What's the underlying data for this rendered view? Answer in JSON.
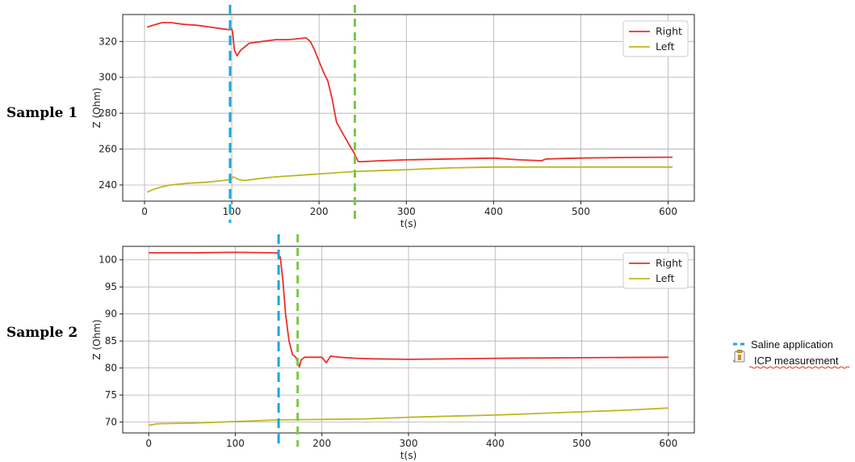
{
  "figure_legend": {
    "items": [
      {
        "label": "Saline application",
        "color": "#1aa7dc",
        "style": "dashed"
      },
      {
        "label": "ICP measurement",
        "color": "#7ac943",
        "style": "dashed"
      }
    ],
    "icon": "clipboard-icon"
  },
  "chart_data": [
    {
      "type": "line",
      "sample_label": "Sample 1",
      "xlabel": "t(s)",
      "ylabel": "Z (Ohm)",
      "xlim": [
        -25,
        630
      ],
      "ylim": [
        231,
        335
      ],
      "x_ticks": [
        0,
        100,
        200,
        300,
        400,
        500,
        600
      ],
      "y_ticks": [
        240,
        260,
        280,
        300,
        320
      ],
      "grid": true,
      "legend": "top-right",
      "vlines": [
        {
          "name": "Saline application",
          "x": 98,
          "color": "#1aa7dc"
        },
        {
          "name": "ICP measurement",
          "x": 241,
          "color": "#7ac943"
        }
      ],
      "series": [
        {
          "name": "Right",
          "color": "#e8312f",
          "x": [
            3,
            10,
            20,
            30,
            45,
            60,
            75,
            90,
            98,
            100,
            101,
            103,
            106,
            110,
            120,
            135,
            150,
            165,
            175,
            185,
            190,
            195,
            200,
            205,
            210,
            215,
            220,
            228,
            235,
            240,
            245,
            250,
            270,
            300,
            350,
            400,
            430,
            455,
            460,
            500,
            550,
            605
          ],
          "y": [
            328,
            329,
            330.5,
            330.5,
            329.5,
            329,
            328,
            327,
            326.5,
            327,
            325,
            315,
            312,
            315,
            319,
            320,
            321,
            321,
            321.5,
            322,
            320,
            315,
            309,
            303,
            298,
            288,
            275,
            268,
            262,
            258,
            253,
            253,
            253.5,
            254,
            254.5,
            255,
            254,
            253.5,
            254.5,
            255,
            255.3,
            255.5
          ]
        },
        {
          "name": "Left",
          "color": "#bcb822",
          "x": [
            3,
            10,
            20,
            30,
            50,
            70,
            90,
            98,
            102,
            108,
            115,
            130,
            150,
            180,
            210,
            240,
            270,
            300,
            350,
            400,
            450,
            500,
            550,
            605
          ],
          "y": [
            236,
            237.5,
            239,
            240,
            241,
            241.5,
            242.5,
            243,
            244.5,
            243,
            242.5,
            243.5,
            244.5,
            245.5,
            246.5,
            247.5,
            248,
            248.5,
            249.5,
            250,
            250,
            250,
            250,
            250
          ]
        }
      ]
    },
    {
      "type": "line",
      "sample_label": "Sample 2",
      "xlabel": "t(s)",
      "ylabel": "Z (Ohm)",
      "xlim": [
        -30,
        630
      ],
      "ylim": [
        68,
        102.5
      ],
      "x_ticks": [
        0,
        100,
        200,
        300,
        400,
        500,
        600
      ],
      "y_ticks": [
        70,
        75,
        80,
        85,
        90,
        95,
        100
      ],
      "grid": true,
      "legend": "top-right",
      "vlines": [
        {
          "name": "Saline application",
          "x": 150,
          "color": "#1aa7dc"
        },
        {
          "name": "ICP measurement",
          "x": 172,
          "color": "#7ac943"
        }
      ],
      "series": [
        {
          "name": "Right",
          "color": "#e8312f",
          "x": [
            0,
            50,
            100,
            148,
            152,
            155,
            158,
            162,
            166,
            170,
            174,
            176,
            180,
            190,
            200,
            205,
            210,
            220,
            240,
            260,
            300,
            400,
            500,
            600
          ],
          "y": [
            101.3,
            101.3,
            101.4,
            101.3,
            100.5,
            96,
            90,
            85,
            82.5,
            82,
            80.2,
            81.5,
            82,
            82,
            82,
            81,
            82.2,
            82,
            81.8,
            81.7,
            81.6,
            81.8,
            81.9,
            82
          ]
        },
        {
          "name": "Left",
          "color": "#bcb822",
          "x": [
            0,
            10,
            50,
            100,
            150,
            200,
            250,
            300,
            350,
            400,
            450,
            500,
            550,
            600
          ],
          "y": [
            69.4,
            69.7,
            69.8,
            70.1,
            70.4,
            70.5,
            70.6,
            70.9,
            71.1,
            71.3,
            71.6,
            71.9,
            72.2,
            72.6
          ]
        }
      ]
    }
  ]
}
